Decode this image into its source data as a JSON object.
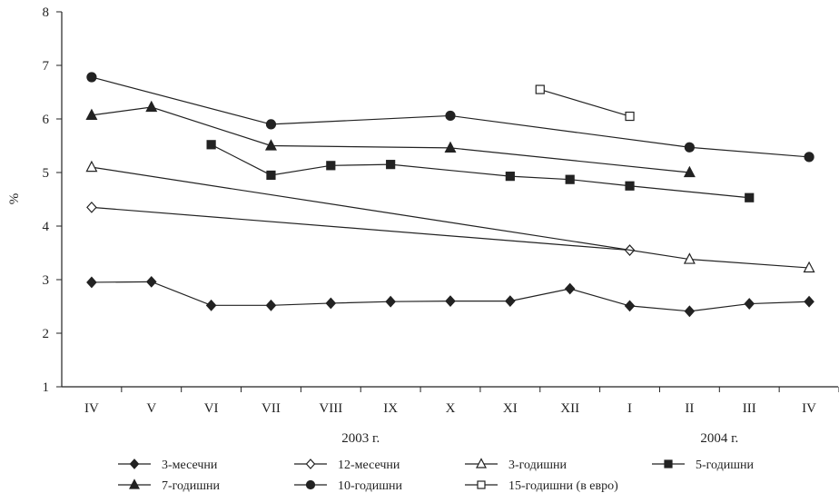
{
  "chart_data": {
    "type": "line",
    "ylabel": "%",
    "ylim": [
      1,
      8
    ],
    "yticks": [
      1,
      2,
      3,
      4,
      5,
      6,
      7,
      8
    ],
    "categories": [
      "IV",
      "V",
      "VI",
      "VII",
      "VIII",
      "IX",
      "X",
      "XI",
      "XII",
      "I",
      "II",
      "III",
      "IV"
    ],
    "year_labels": [
      {
        "text": "2003 г.",
        "at_category": 4.5
      },
      {
        "text": "2004 г.",
        "at_category": 10.5
      }
    ],
    "grid": false,
    "legend_position": "bottom",
    "series": [
      {
        "name": "3-месечни",
        "marker": "diamond-filled",
        "color": "#222222",
        "points": [
          [
            0,
            2.95
          ],
          [
            1,
            2.96
          ],
          [
            2,
            2.52
          ],
          [
            3,
            2.52
          ],
          [
            4,
            2.56
          ],
          [
            5,
            2.59
          ],
          [
            6,
            2.6
          ],
          [
            7,
            2.6
          ],
          [
            8,
            2.83
          ],
          [
            9,
            2.51
          ],
          [
            10,
            2.41
          ],
          [
            11,
            2.55
          ],
          [
            12,
            2.59
          ]
        ]
      },
      {
        "name": "12-месечни",
        "marker": "diamond-open",
        "color": "#222222",
        "points": [
          [
            0,
            4.35
          ],
          [
            9,
            3.55
          ]
        ]
      },
      {
        "name": "3-годишни",
        "marker": "triangle-open",
        "color": "#222222",
        "points": [
          [
            0,
            5.1
          ],
          [
            10,
            3.38
          ],
          [
            12,
            3.22
          ]
        ]
      },
      {
        "name": "5-годишни",
        "marker": "square-filled",
        "color": "#222222",
        "points": [
          [
            2,
            5.52
          ],
          [
            3,
            4.95
          ],
          [
            4,
            5.13
          ],
          [
            5,
            5.15
          ],
          [
            7,
            4.93
          ],
          [
            8,
            4.87
          ],
          [
            9,
            4.75
          ],
          [
            11,
            4.53
          ]
        ]
      },
      {
        "name": "7-годишни",
        "marker": "triangle-filled",
        "color": "#222222",
        "points": [
          [
            0,
            6.07
          ],
          [
            1,
            6.22
          ],
          [
            3,
            5.5
          ],
          [
            6,
            5.46
          ],
          [
            10,
            5.0
          ]
        ]
      },
      {
        "name": "10-годишни",
        "marker": "circle-filled",
        "color": "#222222",
        "points": [
          [
            0,
            6.78
          ],
          [
            3,
            5.9
          ],
          [
            6,
            6.06
          ],
          [
            10,
            5.47
          ],
          [
            12,
            5.29
          ]
        ]
      },
      {
        "name": "15-годишни (в евро)",
        "marker": "square-open",
        "color": "#222222",
        "points": [
          [
            7.5,
            6.55
          ],
          [
            9,
            6.05
          ]
        ]
      }
    ]
  }
}
